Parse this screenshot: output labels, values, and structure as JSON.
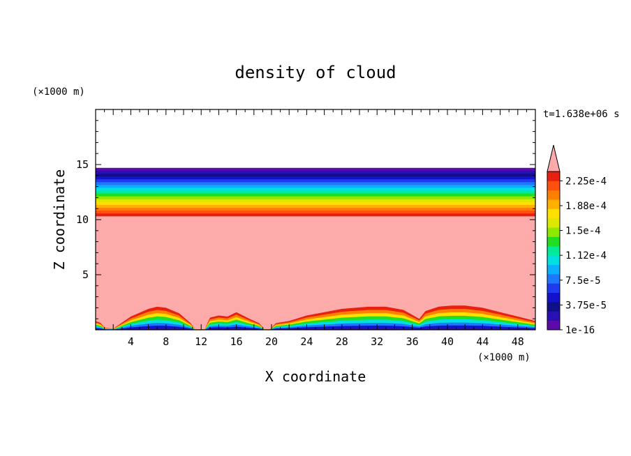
{
  "chart_data": {
    "type": "heatmap",
    "title": "density of cloud",
    "xlabel": "X coordinate",
    "ylabel": "Z coordinate",
    "x_unit": "(×1000 m)",
    "y_unit": "(×1000 m)",
    "time_label": "t=1.638e+06 s",
    "xlim": [
      0,
      50
    ],
    "ylim": [
      0,
      20
    ],
    "x_ticks": [
      4,
      8,
      12,
      16,
      20,
      24,
      28,
      32,
      36,
      40,
      44,
      48
    ],
    "y_ticks": [
      5,
      10,
      15
    ],
    "layer_top": 14.7,
    "layer_base": 10.3,
    "saturation_color": "#fcaaaa",
    "colorbar": {
      "colors": [
        "#5c0aaa",
        "#2a10b4",
        "#0f0f8a",
        "#1212cc",
        "#1d3cf0",
        "#1e78ff",
        "#0ab0ff",
        "#00e0e0",
        "#00ea9a",
        "#22dd22",
        "#8fe800",
        "#dde800",
        "#ffe000",
        "#ffb000",
        "#ff8000",
        "#ff5010",
        "#e82010",
        "#fcaaaa"
      ],
      "labels": [
        "1e-16",
        "3.75e-5",
        "7.5e-5",
        "1.12e-4",
        "1.5e-4",
        "1.88e-4",
        "2.25e-4"
      ],
      "extend": "max"
    },
    "lower_cloud_profile": {
      "x": [
        0,
        0.6,
        1.0,
        2.0,
        4.0,
        6.0,
        7.0,
        8.0,
        9.5,
        10.8,
        11.3,
        11.9,
        12.2,
        12.4,
        13.0,
        14.0,
        15.0,
        16.0,
        17.5,
        18.6,
        19.2,
        19.8,
        20.5,
        22.0,
        24.0,
        28.0,
        31.0,
        33.0,
        35.0,
        36.8,
        37.5,
        39.0,
        40.5,
        42.0,
        44.0,
        46.0,
        48.0,
        50.0
      ],
      "z": [
        0.8,
        0.6,
        0.2,
        0.1,
        1.2,
        1.9,
        2.1,
        2.0,
        1.5,
        0.6,
        0.05,
        0.05,
        0.05,
        0.05,
        1.1,
        1.3,
        1.2,
        1.6,
        1.0,
        0.6,
        0.05,
        0.05,
        0.6,
        0.8,
        1.3,
        1.9,
        2.1,
        2.1,
        1.8,
        1.0,
        1.7,
        2.1,
        2.2,
        2.2,
        2.0,
        1.6,
        1.2,
        0.8
      ]
    }
  }
}
